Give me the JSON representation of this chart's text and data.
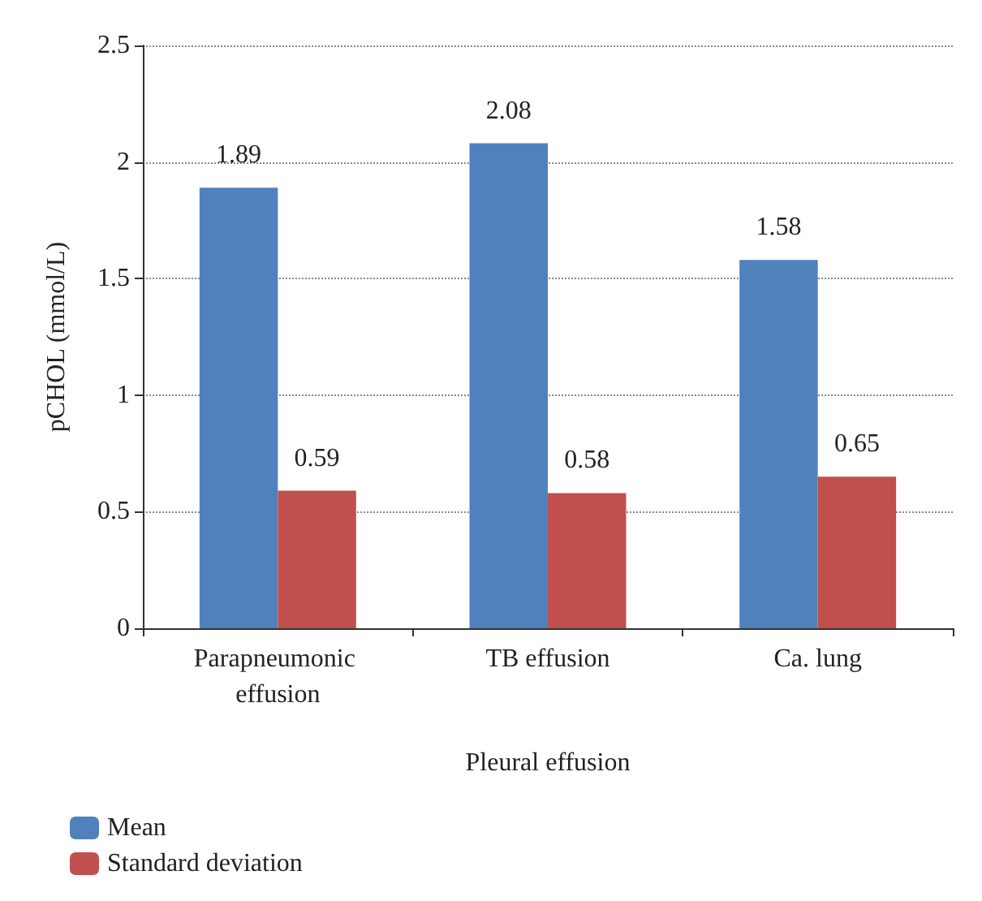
{
  "chart_data": {
    "type": "bar",
    "xlabel": "Pleural effusion",
    "ylabel": "pCHOL (mmol/L)",
    "categories": [
      "Parapneumonic effusion",
      "TB effusion",
      "Ca. lung"
    ],
    "series": [
      {
        "name": "Mean",
        "color": "#4f81bd",
        "values": [
          1.89,
          2.08,
          1.58
        ]
      },
      {
        "name": "Standard deviation",
        "color": "#c0504d",
        "values": [
          0.59,
          0.58,
          0.65
        ]
      }
    ],
    "ylim": [
      0,
      2.5
    ],
    "yticks": [
      0,
      0.5,
      1,
      1.5,
      2,
      2.5
    ],
    "grid": "y",
    "legend": "bottom left",
    "data_labels": true
  }
}
